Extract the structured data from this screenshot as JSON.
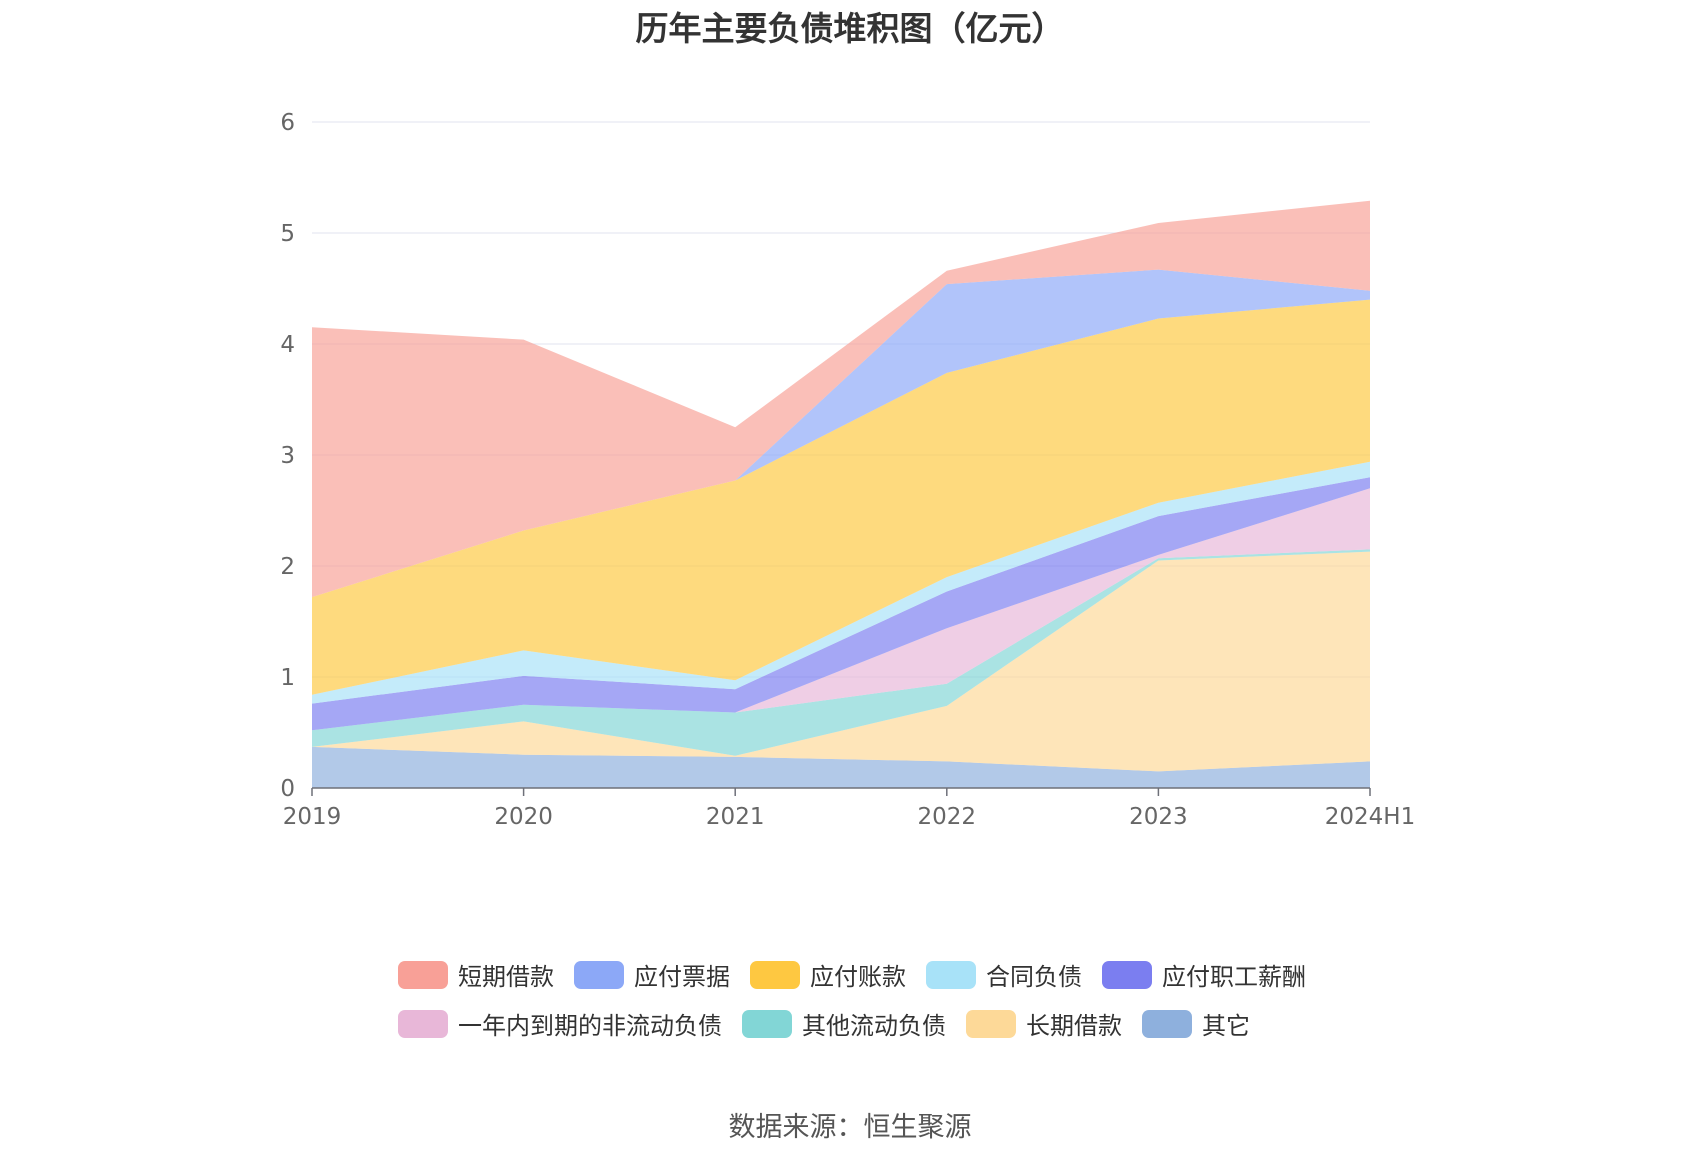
{
  "title": "历年主要负债堆积图（亿元）",
  "source": "数据来源：恒生聚源",
  "chart_data": {
    "type": "area",
    "stacked": true,
    "categories": [
      "2019",
      "2020",
      "2021",
      "2022",
      "2023",
      "2024H1"
    ],
    "ylim": [
      0,
      6
    ],
    "yticks": [
      "0",
      "1",
      "2",
      "3",
      "4",
      "5",
      "6"
    ],
    "grid": true,
    "legend_position": "bottom",
    "series": [
      {
        "name": "其它",
        "color": "#8eb0dd",
        "values": [
          0.37,
          0.3,
          0.28,
          0.24,
          0.15,
          0.24
        ]
      },
      {
        "name": "长期借款",
        "color": "#fdd998",
        "values": [
          0,
          0.3,
          0.01,
          0.5,
          1.9,
          1.89
        ]
      },
      {
        "name": "其他流动负债",
        "color": "#82d6d6",
        "values": [
          0.15,
          0.15,
          0.39,
          0.2,
          0.02,
          0.02
        ]
      },
      {
        "name": "一年内到期的非流动负债",
        "color": "#e8b7d8",
        "values": [
          0,
          0,
          0,
          0.5,
          0.03,
          0.55
        ]
      },
      {
        "name": "应付职工薪酬",
        "color": "#7b7ef0",
        "values": [
          0.24,
          0.26,
          0.21,
          0.33,
          0.35,
          0.1
        ]
      },
      {
        "name": "合同负债",
        "color": "#a8e2f8",
        "values": [
          0.08,
          0.23,
          0.08,
          0.13,
          0.12,
          0.14
        ]
      },
      {
        "name": "应付账款",
        "color": "#fec841",
        "values": [
          0.88,
          1.08,
          1.8,
          1.84,
          1.66,
          1.46
        ]
      },
      {
        "name": "应付票据",
        "color": "#8ca8f7",
        "values": [
          0,
          0,
          0,
          0.8,
          0.44,
          0.08
        ]
      },
      {
        "name": "短期借款",
        "color": "#f8a097",
        "values": [
          2.43,
          1.72,
          0.48,
          0.12,
          0.42,
          0.81
        ]
      }
    ]
  },
  "legend": [
    [
      "短期借款",
      "应付票据",
      "应付账款",
      "合同负债",
      "应付职工薪酬"
    ],
    [
      "一年内到期的非流动负债",
      "其他流动负债",
      "长期借款",
      "其它"
    ]
  ]
}
